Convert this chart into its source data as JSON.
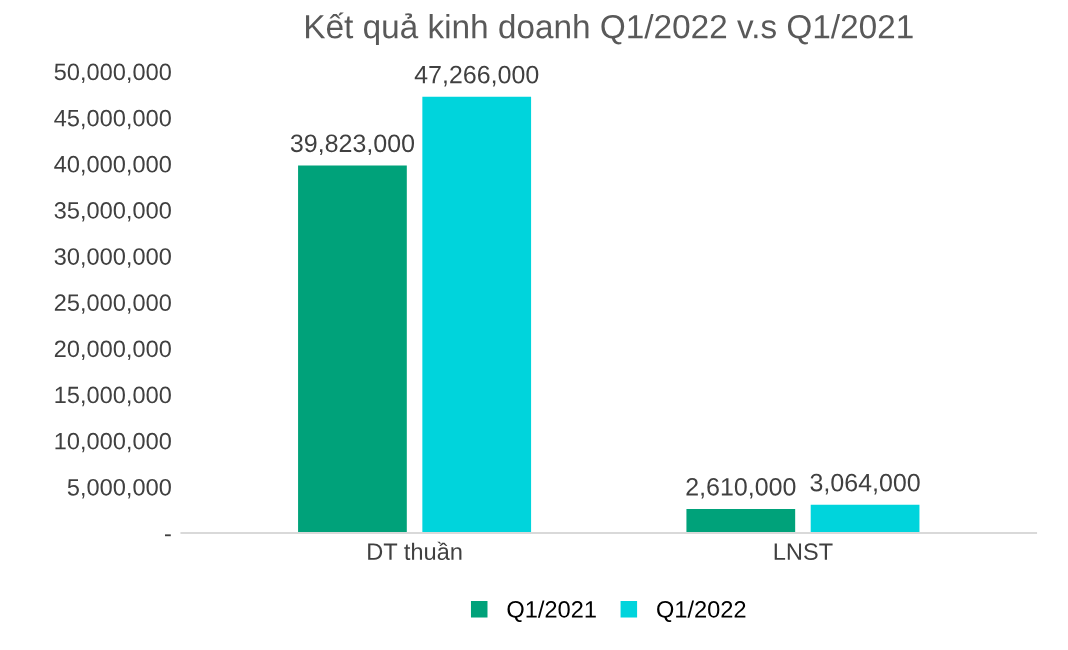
{
  "chart_data": {
    "type": "bar",
    "title": "Kết quả kinh doanh Q1/2022 v.s Q1/2021",
    "categories": [
      "DT thuần",
      "LNST"
    ],
    "series": [
      {
        "name": "Q1/2021",
        "color": "#00a27a",
        "values": [
          39823000,
          2610000
        ],
        "value_labels": [
          "39,823,000",
          "2,610,000"
        ]
      },
      {
        "name": "Q1/2022",
        "color": "#00d4dc",
        "values": [
          47266000,
          3064000
        ],
        "value_labels": [
          "47,266,000",
          "3,064,000"
        ]
      }
    ],
    "ylim": [
      0,
      50000000
    ],
    "yticks": [
      {
        "value": 0,
        "label": "-"
      },
      {
        "value": 5000000,
        "label": "5,000,000"
      },
      {
        "value": 10000000,
        "label": "10,000,000"
      },
      {
        "value": 15000000,
        "label": "15,000,000"
      },
      {
        "value": 20000000,
        "label": "20,000,000"
      },
      {
        "value": 25000000,
        "label": "25,000,000"
      },
      {
        "value": 30000000,
        "label": "30,000,000"
      },
      {
        "value": 35000000,
        "label": "35,000,000"
      },
      {
        "value": 40000000,
        "label": "40,000,000"
      },
      {
        "value": 45000000,
        "label": "45,000,000"
      },
      {
        "value": 50000000,
        "label": "50,000,000"
      }
    ],
    "grid": false,
    "legend": "bottom"
  }
}
